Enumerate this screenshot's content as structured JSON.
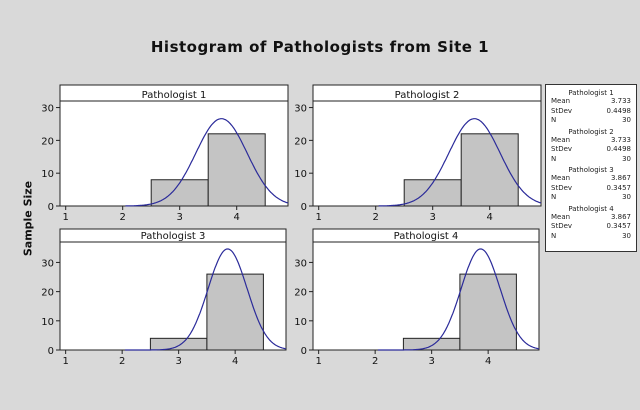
{
  "chart_data": {
    "type": "bar",
    "title": "Histogram of Pathologists from Site 1",
    "ylabel": "Sample Size",
    "xlabel": "",
    "grid": false,
    "legend_placement": "right",
    "xlim": [
      0.9,
      4.9
    ],
    "xticks": [
      1,
      2,
      3,
      4
    ],
    "bin_edges": [
      2.5,
      3.5,
      4.5
    ],
    "fit": "normal",
    "colors": {
      "bar": "#c4c4c4",
      "curve": "#2b2b9a",
      "background": "#d9d9d9"
    },
    "panels": [
      {
        "name": "Pathologist 1",
        "values": [
          8,
          22
        ],
        "mean": 3.733,
        "stdev": 0.4498,
        "n": 30,
        "ylim": [
          0,
          32
        ],
        "yticks": [
          0,
          10,
          20,
          30
        ]
      },
      {
        "name": "Pathologist 2",
        "values": [
          8,
          22
        ],
        "mean": 3.733,
        "stdev": 0.4498,
        "n": 30,
        "ylim": [
          0,
          32
        ],
        "yticks": [
          0,
          10,
          20,
          30
        ]
      },
      {
        "name": "Pathologist 3",
        "values": [
          4,
          26
        ],
        "mean": 3.867,
        "stdev": 0.3457,
        "n": 30,
        "ylim": [
          0,
          37
        ],
        "yticks": [
          0,
          10,
          20,
          30
        ]
      },
      {
        "name": "Pathologist 4",
        "values": [
          4,
          26
        ],
        "mean": 3.867,
        "stdev": 0.3457,
        "n": 30,
        "ylim": [
          0,
          37
        ],
        "yticks": [
          0,
          10,
          20,
          30
        ]
      }
    ],
    "legend_labels": {
      "mean": "Mean",
      "stdev": "StDev",
      "n": "N"
    },
    "legend_values": [
      {
        "mean": "3.733",
        "stdev": "0.4498",
        "n": "30"
      },
      {
        "mean": "3.733",
        "stdev": "0.4498",
        "n": "30"
      },
      {
        "mean": "3.867",
        "stdev": "0.3457",
        "n": "30"
      },
      {
        "mean": "3.867",
        "stdev": "0.3457",
        "n": "30"
      }
    ]
  }
}
